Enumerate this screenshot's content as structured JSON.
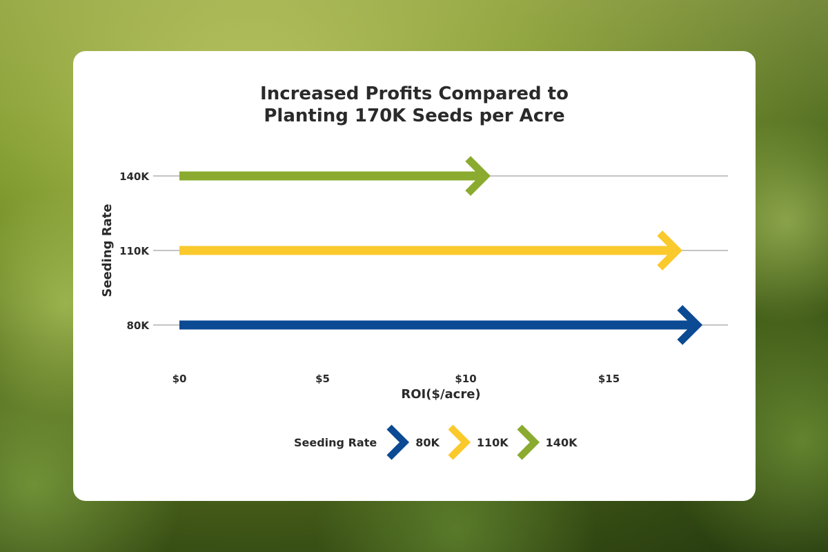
{
  "chart_data": {
    "type": "bar",
    "title_lines": [
      "Increased Profits Compared to",
      "Planting 170K Seeds per Acre"
    ],
    "xlabel": "ROI($/acre)",
    "ylabel": "Seeding Rate",
    "categories": [
      "140K",
      "110K",
      "80K"
    ],
    "values": [
      10.8,
      17.5,
      18.2
    ],
    "colors": [
      "#8aab2f",
      "#fac92c",
      "#0c4a93"
    ],
    "xlim": [
      0,
      19
    ],
    "xticks": [
      0,
      5,
      10,
      15
    ],
    "xtick_labels": [
      "$0",
      "$5",
      "$10",
      "$15"
    ],
    "grid": true,
    "legend": {
      "title": "Seeding Rate",
      "position": "bottom",
      "items": [
        {
          "label": "80K",
          "color": "#0c4a93"
        },
        {
          "label": "110K",
          "color": "#fac92c"
        },
        {
          "label": "140K",
          "color": "#8aab2f"
        }
      ]
    }
  }
}
